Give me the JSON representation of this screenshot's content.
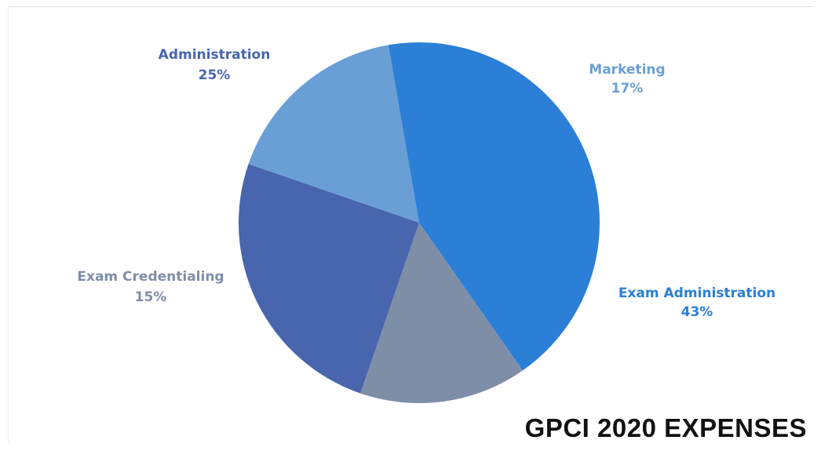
{
  "chart_data": {
    "type": "pie",
    "title": "GPCI 2020 EXPENSES",
    "start_angle_deg": -71,
    "direction": "clockwise",
    "slices": [
      {
        "key": "marketing",
        "label": "Marketing",
        "value": 17,
        "value_label": "17%",
        "color": "#6a9fd6"
      },
      {
        "key": "exam-administration",
        "label": "Exam Administration",
        "value": 43,
        "value_label": "43%",
        "color": "#2b7fd6"
      },
      {
        "key": "exam-credentialing",
        "label": "Exam Credentialing",
        "value": 15,
        "value_label": "15%",
        "color": "#7f8ea7"
      },
      {
        "key": "administration",
        "label": "Administration",
        "value": 25,
        "value_label": "25%",
        "color": "#4865ae"
      }
    ],
    "legend": "none"
  }
}
